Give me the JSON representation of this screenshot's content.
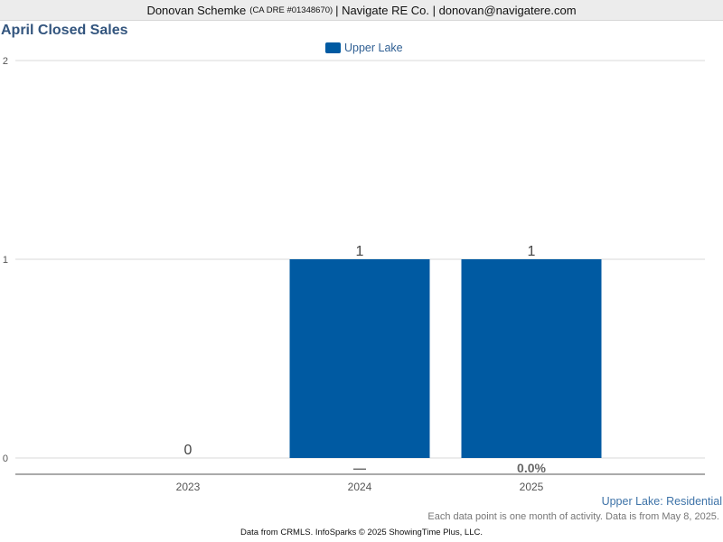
{
  "header": {
    "name": "Donovan Schemke",
    "license": "(CA DRE #01348670)",
    "rest": "| Navigate RE Co. | donovan@navigatere.com"
  },
  "chart_data": {
    "type": "bar",
    "title": "April Closed Sales",
    "categories": [
      "2023",
      "2024",
      "2025"
    ],
    "series": [
      {
        "name": "Upper Lake",
        "values": [
          0,
          1,
          1
        ],
        "color": "#005aa2"
      }
    ],
    "data_labels": [
      "0",
      "1",
      "1"
    ],
    "change_labels": [
      "",
      "—",
      "0.0%"
    ],
    "yticks": [
      "0",
      "1",
      "2"
    ],
    "ylim": [
      0,
      2
    ],
    "grid": true,
    "legend_position": "top-center"
  },
  "series_caption": "Upper Lake: Residential",
  "note": "Each data point is one month of activity. Data is from May 8, 2025.",
  "footer": "Data from CRMLS. InfoSparks © 2025 ShowingTime Plus, LLC."
}
